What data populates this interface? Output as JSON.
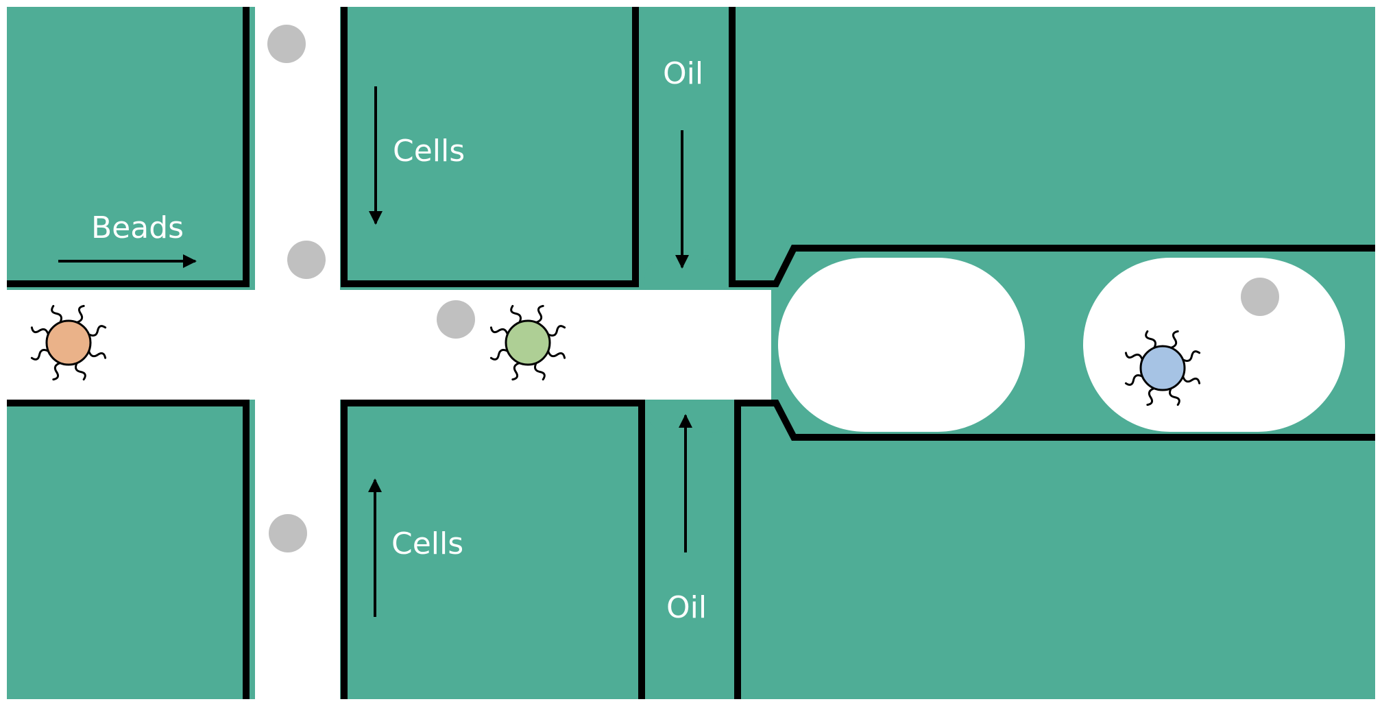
{
  "labels": {
    "beads": "Beads",
    "cells_top": "Cells",
    "cells_bottom": "Cells",
    "oil_top": "Oil",
    "oil_bottom": "Oil"
  },
  "colors": {
    "chip": "#4fad96",
    "channel": "#ffffff",
    "wall": "#000000",
    "bead": "#c0c0c0",
    "cell_orange": "#eab289",
    "cell_green": "#aecf95",
    "cell_blue": "#a6c3e4"
  },
  "icons": {
    "bead": "bead-dot",
    "cell": "cell-with-tendrils-icon",
    "flow_arrow": "arrow-icon"
  }
}
